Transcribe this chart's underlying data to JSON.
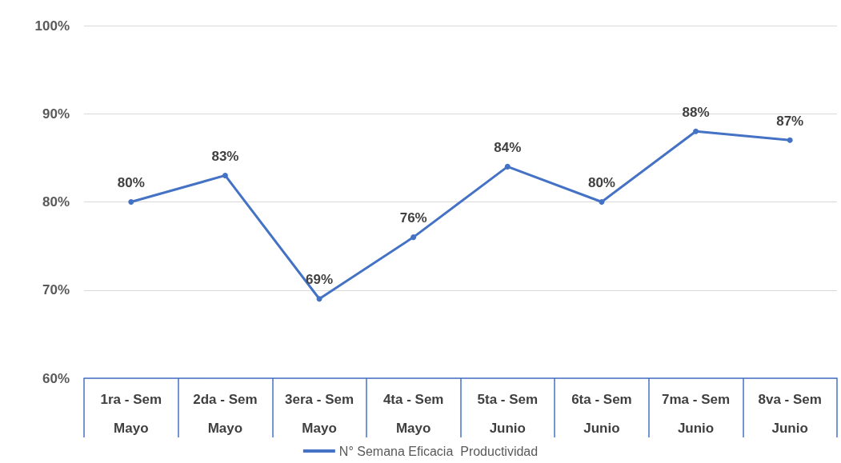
{
  "chart_data": {
    "type": "line",
    "categories": [
      "1ra - Sem\nMayo",
      "2da - Sem\nMayo",
      "3era - Sem\nMayo",
      "4ta - Sem\nMayo",
      "5ta - Sem\nJunio",
      "6ta - Sem\nJunio",
      "7ma - Sem\nJunio",
      "8va - Sem\nJunio"
    ],
    "series": [
      {
        "name": "N° Semana Eficacia  Productividad",
        "color": "#4472c4",
        "values": [
          80,
          83,
          69,
          76,
          84,
          80,
          88,
          87
        ],
        "value_labels": [
          "80%",
          "83%",
          "69%",
          "76%",
          "84%",
          "80%",
          "88%",
          "87%"
        ]
      }
    ],
    "ylim": [
      60,
      100
    ],
    "yticks": [
      {
        "value": 60,
        "label": "60%"
      },
      {
        "value": 70,
        "label": "70%"
      },
      {
        "value": 80,
        "label": "80%"
      },
      {
        "value": 90,
        "label": "90%"
      },
      {
        "value": 100,
        "label": "100%"
      }
    ],
    "grid": "y",
    "legend": "bottom",
    "marker": "circle",
    "line_style": "solid"
  }
}
